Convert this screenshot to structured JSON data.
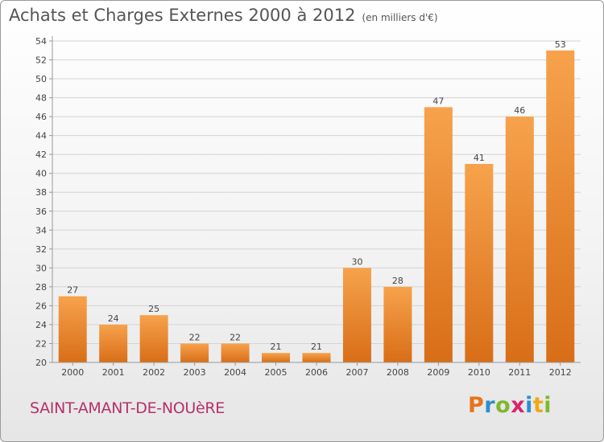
{
  "title": {
    "main": "Achats et Charges Externes 2000 à 2012",
    "unit": "(en milliers d'€)"
  },
  "commune": "SAINT-AMANT-DE-NOUèRE",
  "logo": {
    "letters": [
      "P",
      "r",
      "o",
      "x",
      "i",
      "t",
      "i"
    ],
    "colors": [
      "#e8731b",
      "#2a8fcf",
      "#7fb82f",
      "#d6256e",
      "#2a8fcf",
      "#f0a818",
      "#7fb82f"
    ]
  },
  "colors": {
    "bar_light": "#f7a24c",
    "bar_dark": "#d86e17",
    "axis": "#999999",
    "grid": "#d4d4d4"
  },
  "chart_data": {
    "type": "bar",
    "categories": [
      "2000",
      "2001",
      "2002",
      "2003",
      "2004",
      "2005",
      "2006",
      "2007",
      "2008",
      "2009",
      "2010",
      "2011",
      "2012"
    ],
    "values": [
      27,
      24,
      25,
      22,
      22,
      21,
      21,
      30,
      28,
      47,
      41,
      46,
      53
    ],
    "ylim": [
      20,
      54
    ],
    "yticks": [
      20,
      22,
      24,
      26,
      28,
      30,
      32,
      34,
      36,
      38,
      40,
      42,
      44,
      46,
      48,
      50,
      52,
      54
    ],
    "grid": true,
    "xlabel": "",
    "ylabel": ""
  }
}
